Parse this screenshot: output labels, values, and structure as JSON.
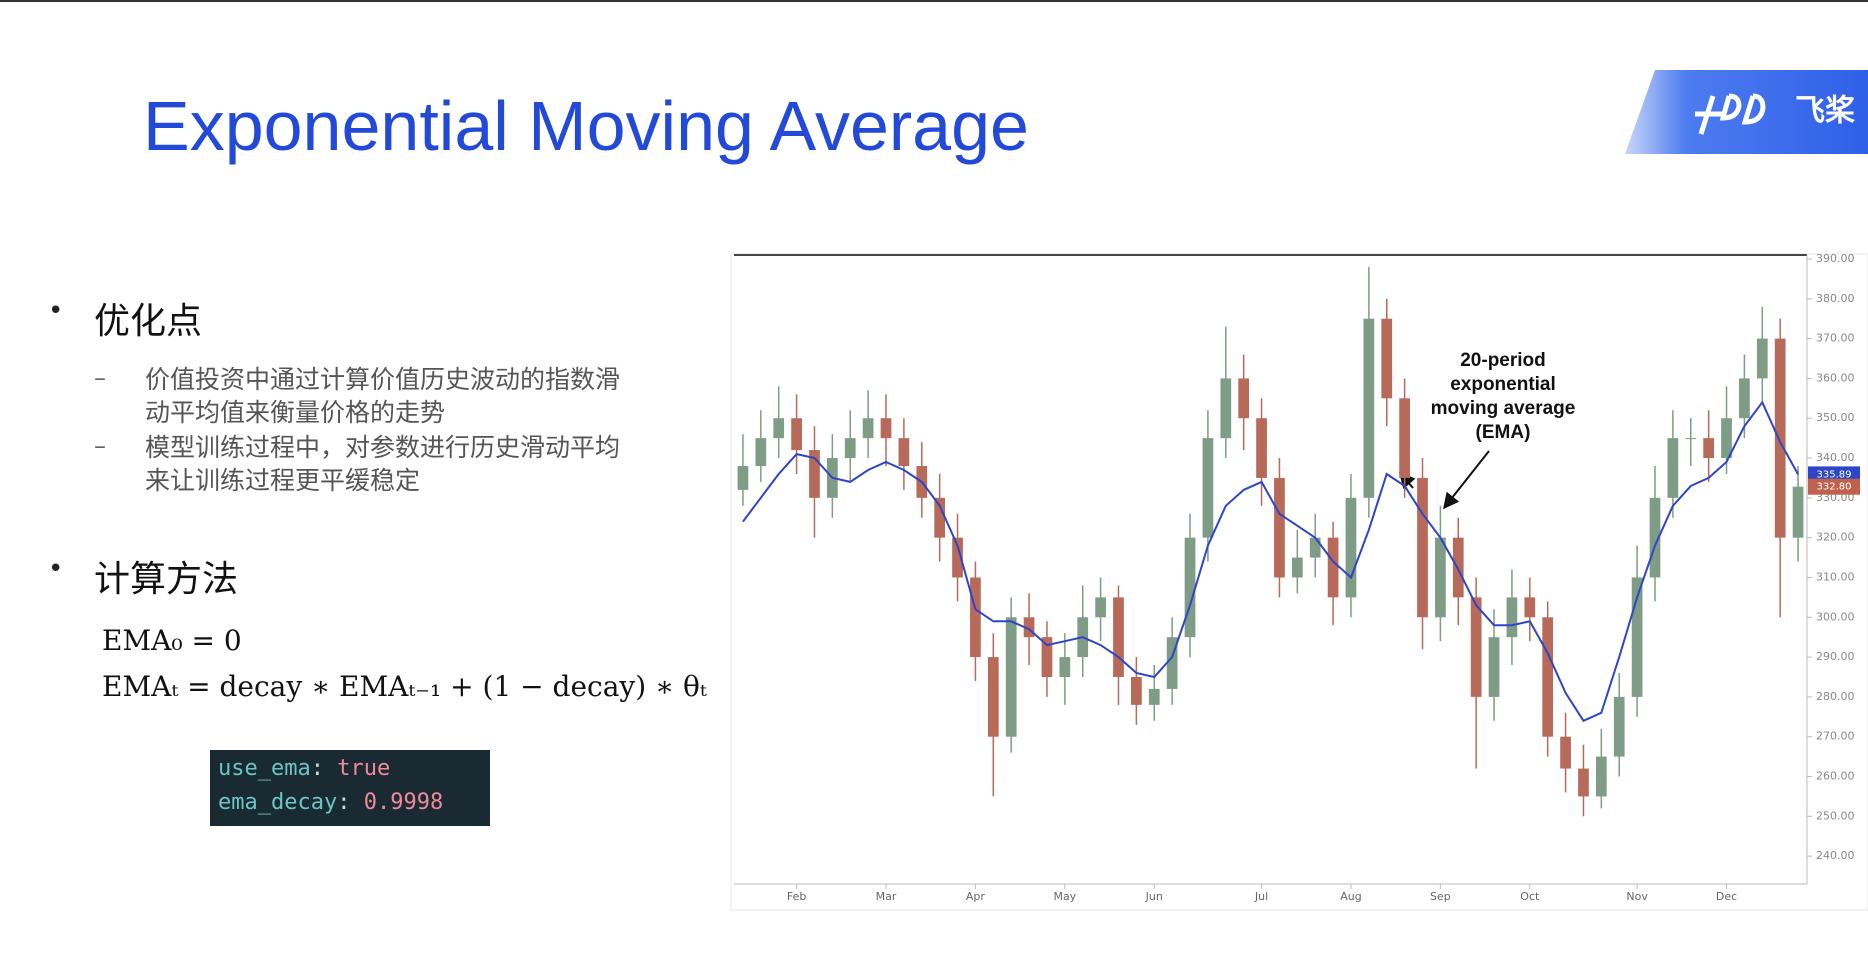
{
  "header": {
    "title": "Exponential Moving Average",
    "logo_text": "飞桨"
  },
  "sections": [
    {
      "heading": "优化点",
      "items": [
        "价值投资中通过计算价值历史波动的指数滑动平均值来衡量价格的走势",
        "模型训练过程中，对参数进行历史滑动平均来让训练过程更平缓稳定"
      ]
    },
    {
      "heading": "计算方法",
      "formulas": [
        "EMA₀ = 0",
        "EMAₜ = decay ∗ EMAₜ₋₁ + (1 − decay) ∗ θₜ"
      ]
    }
  ],
  "code": {
    "lines": [
      {
        "key": "use_ema",
        "value": "true"
      },
      {
        "key": "ema_decay",
        "value": "0.9998"
      }
    ]
  },
  "chart_data": {
    "type": "candlestick",
    "categories": [
      null,
      null,
      null,
      "Feb",
      null,
      null,
      null,
      null,
      "Mar",
      null,
      null,
      null,
      null,
      "Apr",
      null,
      null,
      null,
      null,
      "May",
      null,
      null,
      null,
      null,
      "Jun",
      null,
      null,
      null,
      null,
      null,
      "Jul",
      null,
      null,
      null,
      null,
      "Aug",
      null,
      null,
      null,
      null,
      "Sep",
      null,
      null,
      null,
      null,
      "Oct",
      null,
      null,
      null,
      null,
      null,
      "Nov",
      null,
      null,
      null,
      null,
      "Dec",
      null,
      null,
      null,
      null
    ],
    "open": [
      332,
      338,
      345,
      350,
      342,
      330,
      340,
      345,
      350,
      345,
      338,
      330,
      320,
      310,
      290,
      270,
      300,
      295,
      285,
      290,
      300,
      305,
      285,
      278,
      282,
      295,
      320,
      345,
      360,
      350,
      335,
      310,
      315,
      320,
      305,
      330,
      375,
      355,
      335,
      300,
      320,
      305,
      280,
      295,
      305,
      300,
      270,
      262,
      255,
      265,
      280,
      310,
      330,
      345,
      345,
      340,
      350,
      360,
      370,
      320
    ],
    "high": [
      346,
      352,
      358,
      356,
      348,
      346,
      352,
      357,
      356,
      350,
      344,
      336,
      326,
      314,
      296,
      305,
      306,
      299,
      296,
      308,
      310,
      308,
      290,
      288,
      300,
      326,
      352,
      373,
      366,
      355,
      340,
      322,
      326,
      324,
      336,
      388,
      380,
      360,
      340,
      328,
      325,
      310,
      302,
      312,
      310,
      304,
      276,
      268,
      272,
      286,
      318,
      338,
      352,
      350,
      352,
      358,
      366,
      378,
      375,
      338
    ],
    "low": [
      328,
      334,
      340,
      336,
      320,
      325,
      334,
      340,
      338,
      332,
      325,
      314,
      304,
      284,
      255,
      266,
      288,
      280,
      278,
      285,
      294,
      278,
      273,
      274,
      278,
      290,
      314,
      340,
      342,
      328,
      305,
      306,
      310,
      298,
      300,
      325,
      348,
      330,
      292,
      294,
      298,
      262,
      274,
      288,
      294,
      265,
      256,
      250,
      252,
      260,
      275,
      304,
      325,
      338,
      334,
      336,
      345,
      354,
      300,
      314
    ],
    "close": [
      338,
      345,
      350,
      342,
      330,
      340,
      345,
      350,
      345,
      338,
      330,
      320,
      310,
      290,
      270,
      300,
      295,
      285,
      290,
      300,
      305,
      285,
      278,
      282,
      295,
      320,
      345,
      360,
      350,
      335,
      310,
      315,
      320,
      305,
      330,
      375,
      355,
      335,
      300,
      320,
      305,
      280,
      295,
      305,
      300,
      270,
      262,
      255,
      265,
      280,
      310,
      330,
      345,
      345,
      340,
      350,
      360,
      370,
      320,
      332.8
    ],
    "up_color": "#7f9c86",
    "down_color": "#b86a5a",
    "line": {
      "color": "#2d46c8",
      "values": [
        324,
        330,
        336,
        341,
        340,
        335,
        334,
        337,
        339,
        337,
        334,
        328,
        318,
        302,
        299,
        299,
        297,
        293,
        294,
        295,
        293,
        290,
        286,
        285,
        290,
        303,
        318,
        328,
        332,
        334,
        326,
        323,
        320,
        314,
        310,
        322,
        336,
        333,
        326,
        320,
        312,
        303,
        298,
        298,
        299,
        291,
        281,
        274,
        276,
        290,
        305,
        318,
        328,
        333,
        335,
        339,
        348,
        354,
        344,
        335.89
      ]
    },
    "ylim": [
      233,
      391
    ],
    "yticks": [
      {
        "value": 240,
        "label": "240.00"
      },
      {
        "value": 250,
        "label": "250.00"
      },
      {
        "value": 260,
        "label": "260.00"
      },
      {
        "value": 270,
        "label": "270.00"
      },
      {
        "value": 280,
        "label": "280.00"
      },
      {
        "value": 290,
        "label": "290.00"
      },
      {
        "value": 300,
        "label": "300.00"
      },
      {
        "value": 310,
        "label": "310.00"
      },
      {
        "value": 320,
        "label": "320.00"
      },
      {
        "value": 330,
        "label": "330.00"
      },
      {
        "value": 340,
        "label": "340.00"
      },
      {
        "value": 350,
        "label": "350.00"
      },
      {
        "value": 360,
        "label": "360.00"
      },
      {
        "value": 370,
        "label": "370.00"
      },
      {
        "value": 380,
        "label": "380.00"
      },
      {
        "value": 390,
        "label": "390.00"
      }
    ],
    "grid": false,
    "price_tags": [
      {
        "value": 335.89,
        "color": "#2d46c8"
      },
      {
        "value": 332.8,
        "label": "332.80",
        "color": "#c0614e"
      }
    ],
    "annotation": [
      "20-period",
      "exponential",
      "moving average",
      "(EMA)"
    ]
  }
}
